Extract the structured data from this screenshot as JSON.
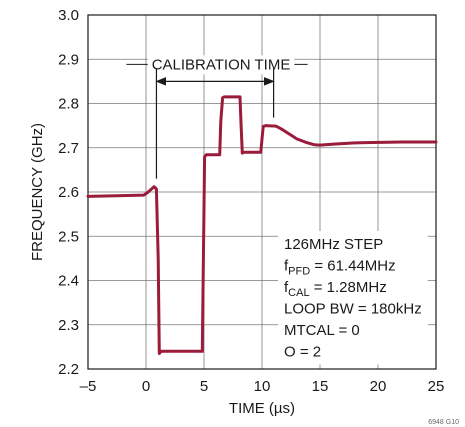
{
  "chart_data": {
    "type": "line",
    "title": "",
    "xlabel": "TIME (µs)",
    "ylabel": "FREQUENCY (GHz)",
    "xlim": [
      -5,
      25
    ],
    "ylim": [
      2.2,
      3.0
    ],
    "x_ticks": [
      -5,
      0,
      5,
      10,
      15,
      20,
      25
    ],
    "x_tick_labels": [
      "–5",
      "0",
      "5",
      "10",
      "15",
      "20",
      "25"
    ],
    "y_ticks": [
      2.2,
      2.3,
      2.4,
      2.5,
      2.6,
      2.7,
      2.8,
      2.9,
      3.0
    ],
    "y_tick_labels": [
      "2.2",
      "2.3",
      "2.4",
      "2.5",
      "2.6",
      "2.7",
      "2.8",
      "2.9",
      "3.0"
    ],
    "grid": true,
    "color": "#9b1b3a",
    "series": [
      {
        "x": [
          -5,
          -0.2,
          0.1,
          0.4,
          0.7,
          0.9,
          1.05,
          1.15,
          1.3,
          1.6,
          4.85,
          4.95,
          5.05,
          5.2,
          6.35,
          6.45,
          6.6,
          6.75,
          8.1,
          8.2,
          8.3,
          8.45,
          9.9,
          10.0,
          10.1,
          10.3,
          11.2,
          11.7,
          12.3,
          13.0,
          13.8,
          14.5,
          15.0,
          16.0,
          18.0,
          20.0,
          22.0,
          25.0
        ],
        "y": [
          2.59,
          2.593,
          2.598,
          2.605,
          2.612,
          2.607,
          2.45,
          2.235,
          2.24,
          2.24,
          2.24,
          2.45,
          2.68,
          2.684,
          2.684,
          2.76,
          2.813,
          2.815,
          2.815,
          2.75,
          2.688,
          2.69,
          2.69,
          2.72,
          2.748,
          2.75,
          2.749,
          2.742,
          2.732,
          2.72,
          2.712,
          2.707,
          2.706,
          2.708,
          2.711,
          2.712,
          2.713,
          2.713
        ]
      }
    ],
    "annotation": {
      "label": "CALIBRATION TIME",
      "x_start": 0.9,
      "x_end": 11.0,
      "y": 2.85
    },
    "notes": [
      "126MHz STEP",
      {
        "base": "f",
        "sub": "PFD",
        "rest": " = 61.44MHz"
      },
      {
        "base": "f",
        "sub": "CAL",
        "rest": " = 1.28MHz"
      },
      "LOOP BW = 180kHz",
      "MTCAL = 0",
      "O = 2"
    ],
    "figure_id": "6948 G10"
  }
}
